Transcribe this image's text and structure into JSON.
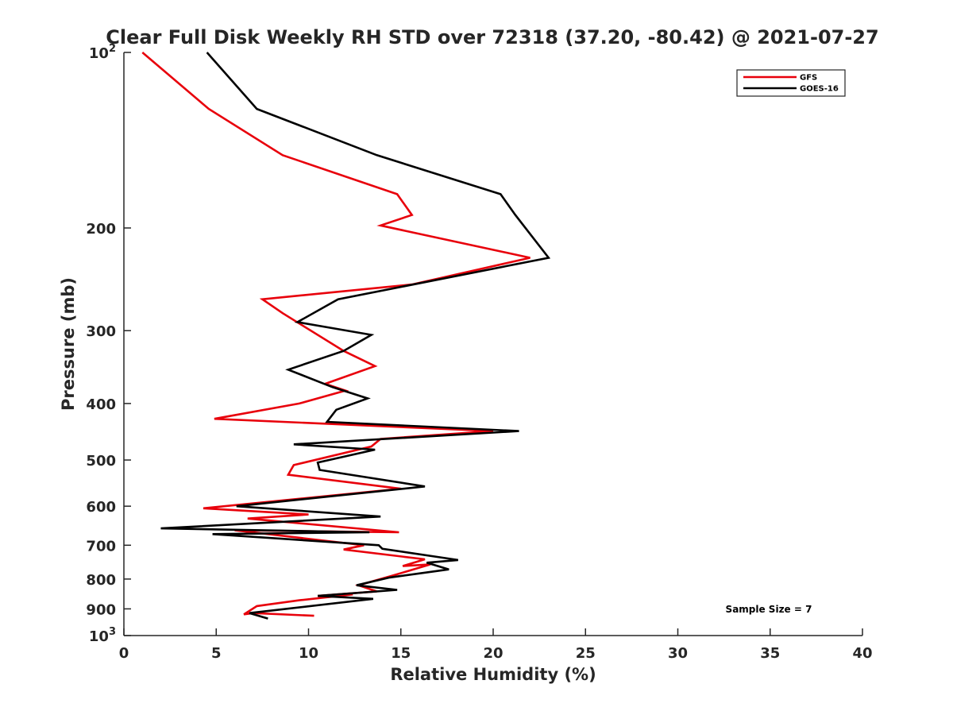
{
  "chart_data": {
    "type": "line",
    "title": "Clear Full Disk Weekly RH STD over 72318 (37.20, -80.42) @ 2021-07-27",
    "xlabel": "Relative Humidity (%)",
    "ylabel": "Pressure (mb)",
    "xlim": [
      0,
      40
    ],
    "ylim": [
      100,
      1000
    ],
    "y_scale": "log",
    "y_reversed": true,
    "grid": false,
    "legend_position": "top-right",
    "x_ticks": [
      "0",
      "5",
      "10",
      "15",
      "20",
      "25",
      "30",
      "35",
      "40"
    ],
    "y_ticks": [
      {
        "value": 100,
        "base": "10",
        "exp": "2"
      },
      {
        "value": 200,
        "label": "200"
      },
      {
        "value": 300,
        "label": "300"
      },
      {
        "value": 400,
        "label": "400"
      },
      {
        "value": 500,
        "label": "500"
      },
      {
        "value": 600,
        "label": "600"
      },
      {
        "value": 700,
        "label": "700"
      },
      {
        "value": 800,
        "label": "800"
      },
      {
        "value": 900,
        "label": "900"
      },
      {
        "value": 1000,
        "base": "10",
        "exp": "3"
      }
    ],
    "annotation": "Sample Size = 7",
    "series": [
      {
        "name": "GFS",
        "color": "#e8000b",
        "points": [
          [
            1.0,
            100
          ],
          [
            4.6,
            125
          ],
          [
            8.6,
            150
          ],
          [
            14.8,
            175
          ],
          [
            15.6,
            190
          ],
          [
            13.9,
            198
          ],
          [
            22.0,
            225
          ],
          [
            15.6,
            250
          ],
          [
            7.5,
            265
          ],
          [
            8.6,
            280
          ],
          [
            11.9,
            325
          ],
          [
            13.6,
            345
          ],
          [
            10.9,
            370
          ],
          [
            12.0,
            380
          ],
          [
            9.5,
            400
          ],
          [
            4.9,
            425
          ],
          [
            20.0,
            446
          ],
          [
            13.9,
            460
          ],
          [
            13.4,
            474
          ],
          [
            9.2,
            510
          ],
          [
            8.9,
            530
          ],
          [
            15.0,
            560
          ],
          [
            4.3,
            605
          ],
          [
            10.0,
            620
          ],
          [
            6.7,
            630
          ],
          [
            14.9,
            665
          ],
          [
            6.0,
            660
          ],
          [
            13.0,
            700
          ],
          [
            11.9,
            712
          ],
          [
            16.3,
            740
          ],
          [
            15.1,
            760
          ],
          [
            16.6,
            755
          ],
          [
            14.5,
            790
          ],
          [
            12.7,
            820
          ],
          [
            13.7,
            840
          ],
          [
            10.5,
            855
          ],
          [
            12.4,
            850
          ],
          [
            9.5,
            870
          ],
          [
            7.2,
            890
          ],
          [
            6.5,
            920
          ],
          [
            7.0,
            915
          ],
          [
            10.3,
            925
          ]
        ]
      },
      {
        "name": "GOES-16",
        "color": "#000000",
        "points": [
          [
            4.5,
            100
          ],
          [
            7.2,
            125
          ],
          [
            13.7,
            150
          ],
          [
            20.4,
            175
          ],
          [
            21.2,
            190
          ],
          [
            23.0,
            225
          ],
          [
            11.6,
            265
          ],
          [
            9.4,
            290
          ],
          [
            13.4,
            305
          ],
          [
            11.9,
            325
          ],
          [
            8.9,
            350
          ],
          [
            11.3,
            375
          ],
          [
            13.2,
            392
          ],
          [
            11.5,
            410
          ],
          [
            11.0,
            430
          ],
          [
            21.4,
            446
          ],
          [
            9.2,
            470
          ],
          [
            13.6,
            480
          ],
          [
            10.5,
            505
          ],
          [
            10.6,
            520
          ],
          [
            16.3,
            555
          ],
          [
            6.1,
            600
          ],
          [
            13.9,
            625
          ],
          [
            2.0,
            655
          ],
          [
            13.3,
            665
          ],
          [
            4.8,
            670
          ],
          [
            13.8,
            700
          ],
          [
            14.0,
            710
          ],
          [
            18.1,
            742
          ],
          [
            16.4,
            750
          ],
          [
            17.6,
            770
          ],
          [
            14.4,
            795
          ],
          [
            12.6,
            820
          ],
          [
            14.8,
            835
          ],
          [
            10.5,
            855
          ],
          [
            13.5,
            865
          ],
          [
            6.8,
            915
          ],
          [
            7.8,
            935
          ]
        ]
      }
    ]
  }
}
